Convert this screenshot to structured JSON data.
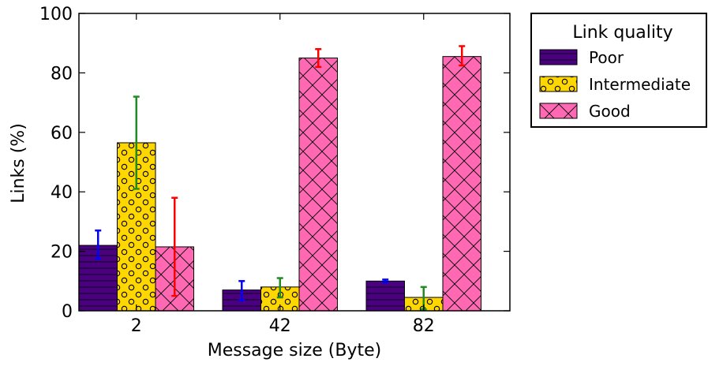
{
  "chart_data": {
    "type": "bar",
    "title": "",
    "xlabel": "Message size (Byte)",
    "ylabel": "Links (%)",
    "ylim": [
      0,
      100
    ],
    "yticks": [
      0,
      20,
      40,
      60,
      80,
      100
    ],
    "categories": [
      "2",
      "42",
      "82"
    ],
    "legend_title": "Link quality",
    "legend_position": "outside-right-top",
    "series": [
      {
        "name": "Poor",
        "color": "#4B0082",
        "hatch": "horizontal-lines",
        "values": [
          22,
          7,
          10
        ],
        "error_low": [
          17.5,
          3.5,
          9.5
        ],
        "error_high": [
          27,
          10,
          10.5
        ],
        "error_color": "#0000ff"
      },
      {
        "name": "Intermediate",
        "color": "#FFD700",
        "hatch": "circles",
        "values": [
          56.5,
          8,
          4.5
        ],
        "error_low": [
          41,
          4.5,
          0.5
        ],
        "error_high": [
          72,
          11,
          8
        ],
        "error_color": "#228B22"
      },
      {
        "name": "Good",
        "color": "#FF69B4",
        "hatch": "crosshatch-diagonal",
        "values": [
          21.5,
          85,
          85.5
        ],
        "error_low": [
          5,
          82,
          82.5
        ],
        "error_high": [
          38,
          88,
          89
        ],
        "error_color": "#ff0000"
      }
    ]
  }
}
